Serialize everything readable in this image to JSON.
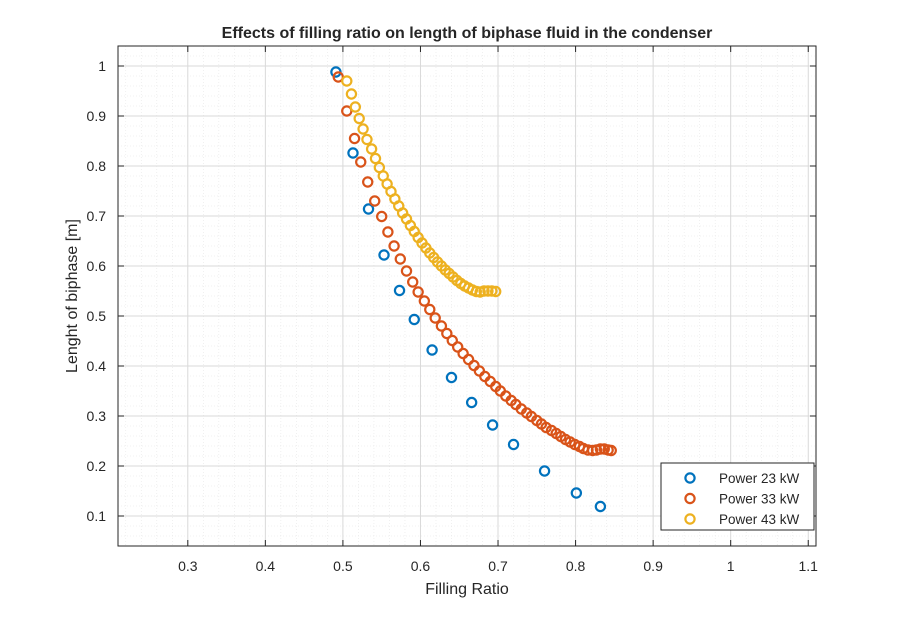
{
  "chart_data": {
    "type": "scatter",
    "title": "Effects of filling ratio on length of biphase fluid in the condenser",
    "xlabel": "Filling Ratio",
    "ylabel": "Lenght of biphase [m]",
    "xlim": [
      0.21,
      1.11
    ],
    "ylim": [
      0.04,
      1.04
    ],
    "xticks": [
      0.3,
      0.4,
      0.5,
      0.6,
      0.7,
      0.8,
      0.9,
      1.0,
      1.1
    ],
    "xtick_labels": [
      "0.3",
      "0.4",
      "0.5",
      "0.6",
      "0.7",
      "0.8",
      "0.9",
      "1",
      "1.1"
    ],
    "yticks": [
      0.1,
      0.2,
      0.3,
      0.4,
      0.5,
      0.6,
      0.7,
      0.8,
      0.9,
      1.0
    ],
    "ytick_labels": [
      "0.1",
      "0.2",
      "0.3",
      "0.4",
      "0.5",
      "0.6",
      "0.7",
      "0.8",
      "0.9",
      "1"
    ],
    "grid": true,
    "minor_grid": true,
    "marker": "open-circle",
    "legend_position": "bottom-right",
    "series": [
      {
        "name": "Power 23 kW",
        "color": "#0072BD",
        "x": [
          0.491,
          0.513,
          0.533,
          0.553,
          0.573,
          0.592,
          0.615,
          0.64,
          0.666,
          0.693,
          0.72,
          0.76,
          0.801,
          0.832
        ],
        "y": [
          0.988,
          0.826,
          0.714,
          0.622,
          0.551,
          0.493,
          0.432,
          0.377,
          0.327,
          0.282,
          0.243,
          0.19,
          0.146,
          0.119
        ]
      },
      {
        "name": "Power 33 kW",
        "color": "#D95319",
        "x": [
          0.494,
          0.505,
          0.515,
          0.523,
          0.532,
          0.541,
          0.55,
          0.558,
          0.566,
          0.574,
          0.582,
          0.59,
          0.597,
          0.605,
          0.612,
          0.619,
          0.627,
          0.634,
          0.641,
          0.648,
          0.655,
          0.662,
          0.669,
          0.676,
          0.683,
          0.69,
          0.697,
          0.703,
          0.71,
          0.717,
          0.723,
          0.73,
          0.737,
          0.743,
          0.75,
          0.756,
          0.762,
          0.769,
          0.775,
          0.781,
          0.787,
          0.793,
          0.799,
          0.805,
          0.81,
          0.816,
          0.822,
          0.827,
          0.832,
          0.837,
          0.842,
          0.846
        ],
        "y": [
          0.978,
          0.91,
          0.855,
          0.808,
          0.768,
          0.73,
          0.699,
          0.668,
          0.64,
          0.614,
          0.59,
          0.568,
          0.548,
          0.53,
          0.513,
          0.496,
          0.48,
          0.465,
          0.451,
          0.438,
          0.425,
          0.413,
          0.401,
          0.39,
          0.379,
          0.369,
          0.359,
          0.35,
          0.34,
          0.331,
          0.323,
          0.314,
          0.306,
          0.299,
          0.291,
          0.284,
          0.277,
          0.271,
          0.265,
          0.259,
          0.253,
          0.248,
          0.243,
          0.239,
          0.235,
          0.232,
          0.231,
          0.232,
          0.234,
          0.234,
          0.232,
          0.231
        ]
      },
      {
        "name": "Power 43 kW",
        "color": "#EDB120",
        "x": [
          0.505,
          0.511,
          0.516,
          0.521,
          0.526,
          0.531,
          0.537,
          0.542,
          0.547,
          0.552,
          0.557,
          0.562,
          0.567,
          0.572,
          0.577,
          0.582,
          0.587,
          0.592,
          0.597,
          0.602,
          0.607,
          0.612,
          0.617,
          0.622,
          0.627,
          0.632,
          0.637,
          0.642,
          0.647,
          0.652,
          0.657,
          0.662,
          0.667,
          0.672,
          0.677,
          0.682,
          0.687,
          0.692,
          0.697
        ],
        "y": [
          0.97,
          0.944,
          0.918,
          0.895,
          0.874,
          0.853,
          0.834,
          0.815,
          0.797,
          0.78,
          0.764,
          0.749,
          0.734,
          0.72,
          0.706,
          0.694,
          0.681,
          0.669,
          0.657,
          0.646,
          0.636,
          0.626,
          0.617,
          0.608,
          0.6,
          0.592,
          0.585,
          0.578,
          0.571,
          0.565,
          0.56,
          0.556,
          0.552,
          0.549,
          0.548,
          0.55,
          0.55,
          0.55,
          0.549
        ]
      }
    ]
  }
}
